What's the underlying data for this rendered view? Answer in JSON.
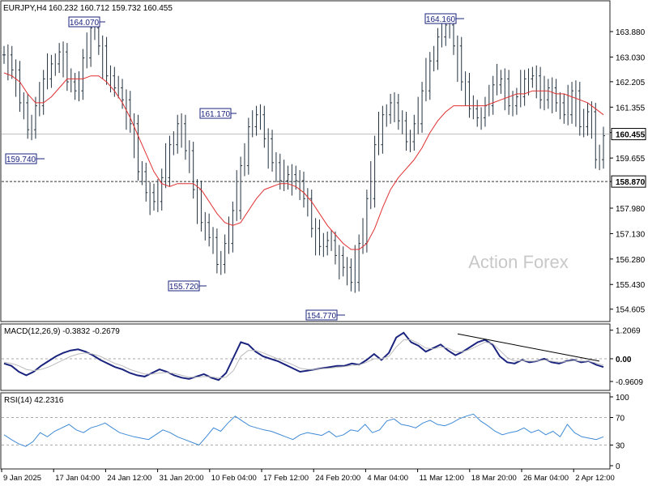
{
  "chart_data": [
    {
      "type": "candlestick",
      "title": "EURJPY,H4",
      "ohlc_header": "160.232 160.712 159.732 160.455",
      "watermark": "Action Forex",
      "series": [
        {
          "name": "price",
          "values": [
            163.1,
            162.6,
            161.5,
            160.6,
            161.4,
            162.3,
            162.8,
            163.2,
            162.2,
            161.9,
            163.0,
            164.0,
            163.4,
            162.4,
            162.0,
            161.6,
            160.8,
            159.2,
            158.5,
            158.2,
            159.0,
            160.1,
            160.8,
            159.9,
            158.6,
            157.5,
            157.0,
            156.1,
            156.8,
            157.9,
            159.4,
            160.7,
            161.1,
            160.3,
            159.5,
            158.9,
            159.1,
            158.9,
            158.3,
            157.3,
            156.7,
            156.9,
            156.4,
            156.0,
            155.5,
            156.8,
            158.3,
            160.1,
            161.1,
            161.5,
            160.9,
            160.2,
            160.8,
            161.9,
            162.9,
            163.7,
            164.1,
            163.4,
            162.2,
            161.3,
            161.0,
            161.4,
            162.1,
            162.3,
            161.4,
            161.7,
            162.3,
            162.4,
            161.6,
            162.0,
            161.5,
            161.1,
            161.9,
            160.7,
            161.2,
            159.6,
            160.4
          ]
        },
        {
          "name": "ma",
          "values": [
            162.5,
            162.4,
            162.2,
            161.8,
            161.5,
            161.5,
            161.7,
            162.0,
            162.3,
            162.3,
            162.3,
            162.4,
            162.4,
            162.2,
            161.9,
            161.5,
            161.0,
            160.4,
            159.8,
            159.2,
            158.8,
            158.7,
            158.8,
            158.8,
            158.8,
            158.6,
            158.2,
            157.8,
            157.5,
            157.4,
            157.5,
            157.9,
            158.3,
            158.6,
            158.7,
            158.8,
            158.8,
            158.7,
            158.5,
            158.2,
            157.8,
            157.4,
            157.1,
            156.8,
            156.6,
            156.6,
            156.8,
            157.3,
            158.0,
            158.6,
            159.0,
            159.3,
            159.6,
            160.0,
            160.5,
            160.9,
            161.2,
            161.4,
            161.4,
            161.4,
            161.4,
            161.4,
            161.5,
            161.6,
            161.7,
            161.8,
            161.8,
            161.9,
            161.9,
            161.9,
            161.8,
            161.8,
            161.7,
            161.6,
            161.5,
            161.3,
            161.1
          ]
        },
        {
          "name": "horizontal_level",
          "values": [
            158.87
          ]
        }
      ],
      "annotations": [
        "164.070",
        "159.740",
        "155.720",
        "161.170",
        "154.770",
        "164.160"
      ],
      "y_tick_labels": [
        "163.880",
        "163.030",
        "162.205",
        "161.355",
        "160.505",
        "159.655",
        "158.870",
        "157.980",
        "157.130",
        "156.280",
        "155.430",
        "154.605"
      ],
      "y_tick_values": [
        163.88,
        163.03,
        162.205,
        161.355,
        160.505,
        159.655,
        158.87,
        157.98,
        157.13,
        156.28,
        155.43,
        154.605
      ],
      "current_price_label": "160.455",
      "current_price": 160.455,
      "level_label": "158.870",
      "level": 158.87,
      "ylim": [
        154.3,
        164.8
      ]
    },
    {
      "type": "line",
      "title": "MACD(12,26,9) -0.3832 -0.2679",
      "ylim": [
        -1.2,
        1.3
      ],
      "y_tick_labels": [
        "1.2069",
        "0.00",
        "-0.9609"
      ],
      "y_tick_values": [
        1.2069,
        0.0,
        -0.9609
      ],
      "series": [
        {
          "name": "macd",
          "values": [
            -0.2,
            -0.3,
            -0.55,
            -0.7,
            -0.55,
            -0.3,
            -0.1,
            0.1,
            0.25,
            0.35,
            0.4,
            0.3,
            0.15,
            -0.05,
            -0.2,
            -0.35,
            -0.45,
            -0.6,
            -0.7,
            -0.75,
            -0.6,
            -0.45,
            -0.55,
            -0.7,
            -0.8,
            -0.85,
            -0.75,
            -0.65,
            -0.8,
            -0.9,
            -0.6,
            0.05,
            0.7,
            0.6,
            0.3,
            0.1,
            0.0,
            -0.1,
            -0.25,
            -0.4,
            -0.55,
            -0.5,
            -0.45,
            -0.4,
            -0.35,
            -0.3,
            -0.3,
            -0.2,
            -0.25,
            -0.05,
            0.2,
            -0.05,
            0.25,
            0.9,
            1.1,
            0.7,
            0.55,
            0.3,
            0.45,
            0.6,
            0.35,
            0.15,
            0.3,
            0.5,
            0.7,
            0.8,
            0.6,
            0.1,
            -0.15,
            -0.2,
            -0.05,
            -0.15,
            -0.1,
            0.0,
            -0.15,
            -0.2,
            -0.1,
            -0.05,
            -0.15,
            -0.1,
            -0.25,
            -0.35
          ]
        },
        {
          "name": "signal",
          "values": [
            -0.15,
            -0.2,
            -0.3,
            -0.45,
            -0.5,
            -0.45,
            -0.35,
            -0.2,
            -0.05,
            0.1,
            0.2,
            0.25,
            0.2,
            0.1,
            -0.05,
            -0.2,
            -0.3,
            -0.45,
            -0.55,
            -0.65,
            -0.65,
            -0.6,
            -0.58,
            -0.62,
            -0.7,
            -0.78,
            -0.78,
            -0.75,
            -0.76,
            -0.82,
            -0.78,
            -0.5,
            0.1,
            0.35,
            0.35,
            0.25,
            0.12,
            0.0,
            -0.12,
            -0.25,
            -0.4,
            -0.45,
            -0.45,
            -0.42,
            -0.4,
            -0.36,
            -0.33,
            -0.28,
            -0.26,
            -0.15,
            0.0,
            0.0,
            0.1,
            0.5,
            0.8,
            0.8,
            0.65,
            0.45,
            0.42,
            0.5,
            0.45,
            0.3,
            0.3,
            0.4,
            0.55,
            0.7,
            0.65,
            0.35,
            0.05,
            -0.1,
            -0.08,
            -0.1,
            -0.1,
            -0.05,
            -0.1,
            -0.15,
            -0.12,
            -0.08,
            -0.1,
            -0.1,
            -0.18,
            -0.27
          ]
        }
      ]
    },
    {
      "type": "line",
      "title": "RSI(14) 42.2316",
      "ylim": [
        0,
        100
      ],
      "y_tick_labels": [
        "100",
        "70",
        "30",
        "0"
      ],
      "y_tick_values": [
        100,
        70,
        30,
        0
      ],
      "series": [
        {
          "name": "rsi",
          "values": [
            45,
            38,
            32,
            28,
            35,
            48,
            42,
            50,
            55,
            60,
            52,
            48,
            55,
            58,
            62,
            55,
            48,
            45,
            42,
            40,
            38,
            45,
            52,
            48,
            42,
            38,
            34,
            30,
            42,
            55,
            50,
            62,
            72,
            65,
            58,
            55,
            52,
            50,
            46,
            42,
            38,
            45,
            48,
            46,
            44,
            50,
            42,
            45,
            52,
            50,
            60,
            48,
            52,
            65,
            68,
            60,
            58,
            55,
            62,
            66,
            60,
            58,
            62,
            68,
            72,
            75,
            65,
            58,
            50,
            45,
            48,
            50,
            55,
            48,
            52,
            45,
            50,
            42,
            60,
            48,
            42,
            40,
            38,
            42
          ]
        }
      ]
    }
  ],
  "x_axis_labels": [
    "9 Jan 2025",
    "17 Jan 04:00",
    "24 Jan 12:00",
    "31 Jan 20:00",
    "10 Feb 04:00",
    "17 Feb 12:00",
    "24 Feb 20:00",
    "4 Mar 04:00",
    "11 Mar 12:00",
    "18 Mar 20:00",
    "26 Mar 04:00",
    "2 Apr 12:00"
  ],
  "colors": {
    "bars": "#22313f",
    "ma": "#e03030",
    "macd": "#1a237e",
    "signal": "#bbbbbb",
    "rsi": "#3f8ad6",
    "grid": "#c8c8c8",
    "watermark": "#c8c8c8"
  }
}
